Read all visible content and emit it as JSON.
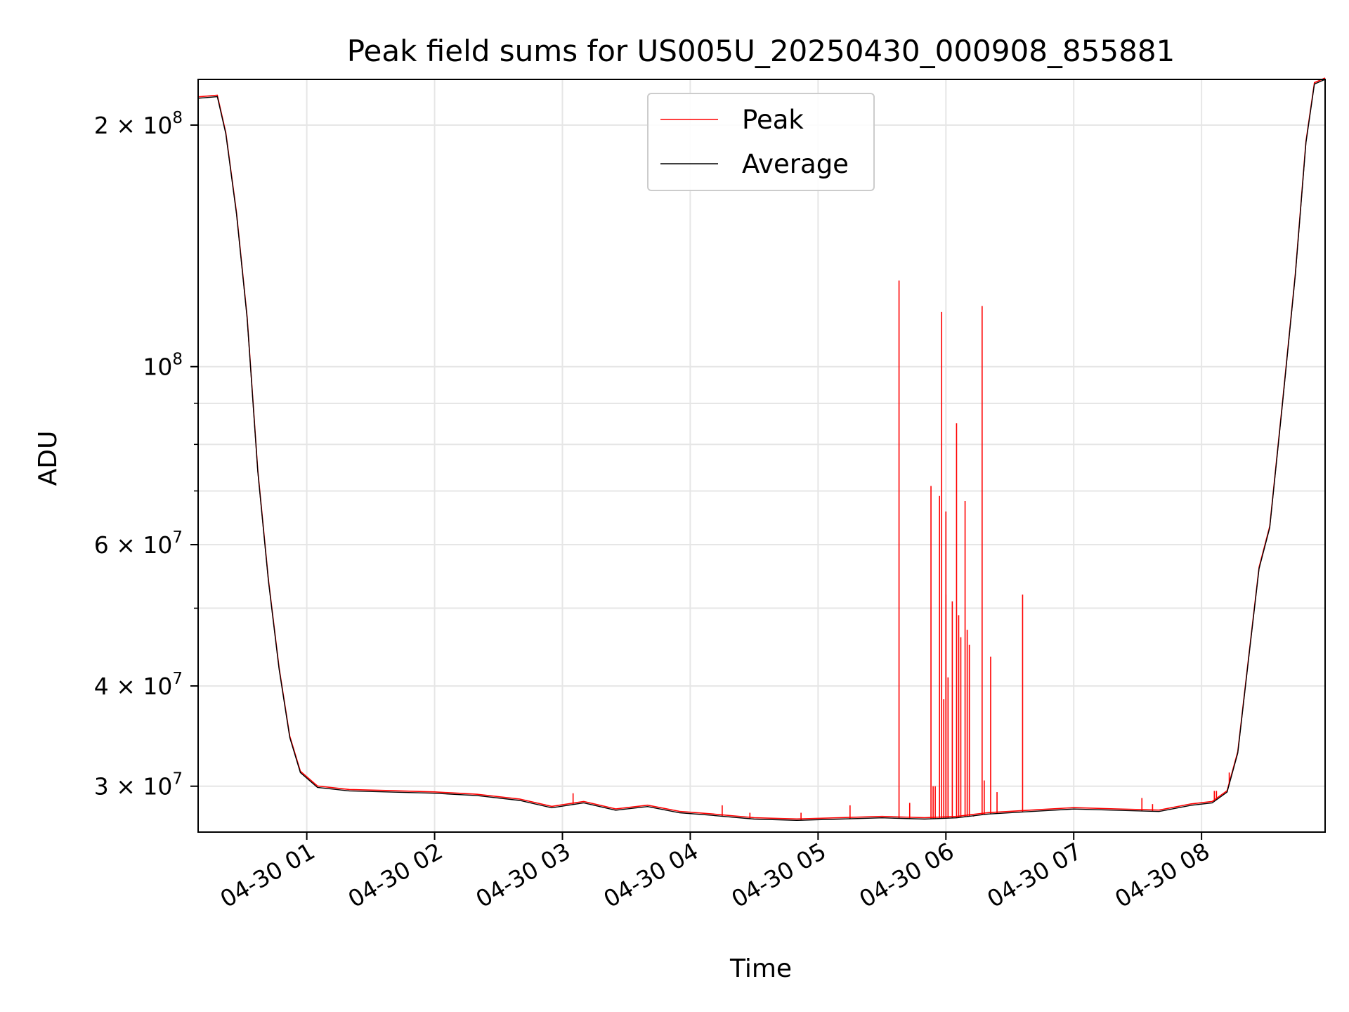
{
  "chart_data": {
    "type": "line",
    "title": "Peak field sums for US005U_20250430_000908_855881",
    "xlabel": "Time",
    "ylabel": "ADU",
    "yscale": "log",
    "ylim": [
      26300000,
      228000000
    ],
    "xlim": [
      "2025-04-30T00:09:00",
      "2025-04-30T08:58:00"
    ],
    "grid": true,
    "legend_placement": "upper center",
    "x_tick_labels": [
      "04-30 01",
      "04-30 02",
      "04-30 03",
      "04-30 04",
      "04-30 05",
      "04-30 06",
      "04-30 07",
      "04-30 08"
    ],
    "y_tick_labels": [
      {
        "value": 30000000,
        "mantissa": "3",
        "exp": "7"
      },
      {
        "value": 40000000,
        "mantissa": "4",
        "exp": "7"
      },
      {
        "value": 60000000,
        "mantissa": "6",
        "exp": "7"
      },
      {
        "value": 100000000,
        "mantissa": "",
        "exp": "8"
      },
      {
        "value": 200000000,
        "mantissa": "2",
        "exp": "8"
      }
    ],
    "series": [
      {
        "name": "Average",
        "color": "#000000",
        "points": [
          [
            "00:09",
            216000000.0
          ],
          [
            "00:18",
            217000000.0
          ],
          [
            "00:22",
            195000000.0
          ],
          [
            "00:27",
            155000000.0
          ],
          [
            "00:32",
            115000000.0
          ],
          [
            "00:37",
            74000000.0
          ],
          [
            "00:42",
            54000000.0
          ],
          [
            "00:47",
            42000000.0
          ],
          [
            "00:52",
            34500000.0
          ],
          [
            "00:57",
            31200000.0
          ],
          [
            "01:05",
            29900000.0
          ],
          [
            "01:20",
            29600000.0
          ],
          [
            "01:40",
            29500000.0
          ],
          [
            "02:00",
            29400000.0
          ],
          [
            "02:20",
            29200000.0
          ],
          [
            "02:40",
            28800000.0
          ],
          [
            "02:55",
            28200000.0
          ],
          [
            "03:10",
            28600000.0
          ],
          [
            "03:25",
            28000000.0
          ],
          [
            "03:40",
            28300000.0
          ],
          [
            "03:55",
            27800000.0
          ],
          [
            "04:10",
            27600000.0
          ],
          [
            "04:30",
            27300000.0
          ],
          [
            "04:50",
            27200000.0
          ],
          [
            "05:10",
            27300000.0
          ],
          [
            "05:30",
            27400000.0
          ],
          [
            "05:50",
            27300000.0
          ],
          [
            "06:05",
            27400000.0
          ],
          [
            "06:20",
            27700000.0
          ],
          [
            "06:40",
            27900000.0
          ],
          [
            "07:00",
            28100000.0
          ],
          [
            "07:20",
            28000000.0
          ],
          [
            "07:40",
            27900000.0
          ],
          [
            "07:55",
            28400000.0
          ],
          [
            "08:05",
            28600000.0
          ],
          [
            "08:12",
            29500000.0
          ],
          [
            "08:17",
            33000000.0
          ],
          [
            "08:22",
            43000000.0
          ],
          [
            "08:27",
            56000000.0
          ],
          [
            "08:32",
            63000000.0
          ],
          [
            "08:38",
            90000000.0
          ],
          [
            "08:44",
            130000000.0
          ],
          [
            "08:49",
            190000000.0
          ],
          [
            "08:53",
            225000000.0
          ],
          [
            "08:58",
            228000000.0
          ]
        ]
      },
      {
        "name": "Peak",
        "color": "#ff0000",
        "spikes": [
          [
            "03:05",
            29400000.0
          ],
          [
            "04:15",
            28400000.0
          ],
          [
            "04:28",
            27800000.0
          ],
          [
            "04:52",
            27800000.0
          ],
          [
            "05:15",
            28400000.0
          ],
          [
            "05:38",
            128000000.0
          ],
          [
            "05:43",
            28600000.0
          ],
          [
            "05:53",
            71000000.0
          ],
          [
            "05:54",
            30000000.0
          ],
          [
            "05:55",
            30000000.0
          ],
          [
            "05:57",
            69000000.0
          ],
          [
            "05:58",
            117000000.0
          ],
          [
            "05:59",
            38500000.0
          ],
          [
            "06:00",
            52000000.0
          ],
          [
            "06:00",
            66000000.0
          ],
          [
            "06:01",
            41000000.0
          ],
          [
            "06:03",
            51000000.0
          ],
          [
            "06:05",
            85000000.0
          ],
          [
            "06:06",
            49000000.0
          ],
          [
            "06:07",
            46000000.0
          ],
          [
            "06:09",
            68000000.0
          ],
          [
            "06:10",
            47000000.0
          ],
          [
            "06:11",
            45000000.0
          ],
          [
            "06:13",
            27500000.0
          ],
          [
            "06:17",
            119000000.0
          ],
          [
            "06:18",
            30500000.0
          ],
          [
            "06:21",
            43500000.0
          ],
          [
            "06:24",
            29500000.0
          ],
          [
            "06:36",
            52000000.0
          ],
          [
            "07:32",
            29000000.0
          ],
          [
            "07:37",
            28500000.0
          ],
          [
            "08:06",
            29600000.0
          ],
          [
            "08:07",
            29600000.0
          ],
          [
            "08:13",
            31200000.0
          ]
        ]
      }
    ]
  }
}
